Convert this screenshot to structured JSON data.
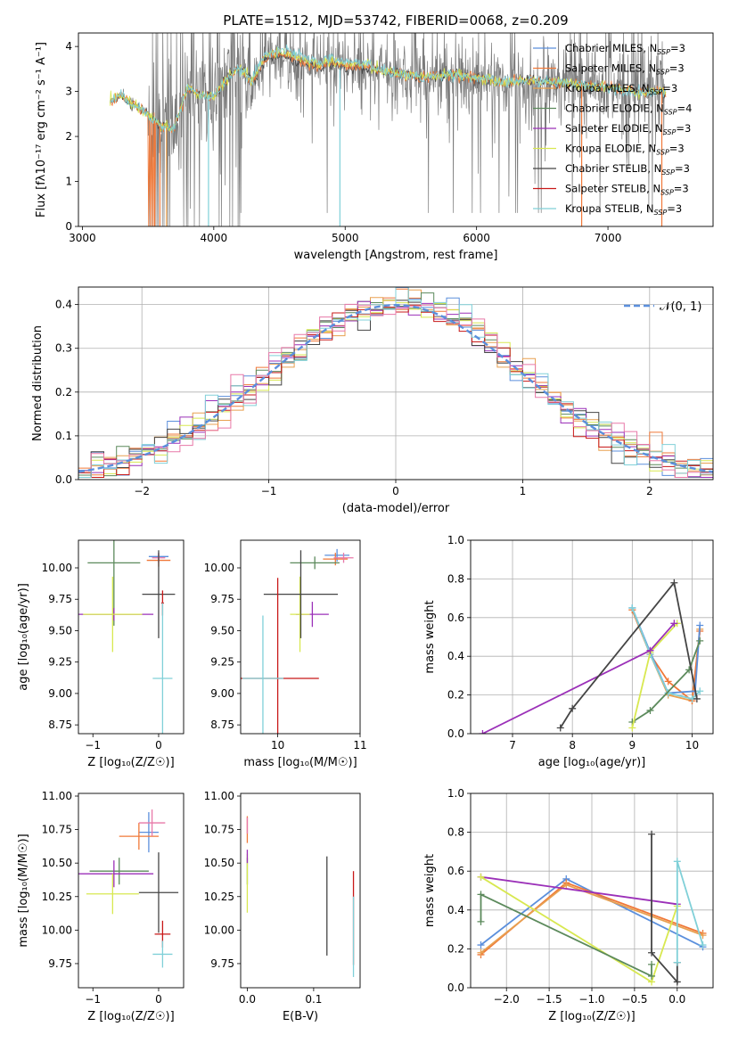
{
  "colors": {
    "c_miles": "#5b8fdc",
    "s_miles": "#f07838",
    "k_miles": "#e8a050",
    "c_elodie": "#5c8a5c",
    "s_elodie": "#9b30b8",
    "k_elodie": "#d8e850",
    "c_stelib": "#454545",
    "s_stelib": "#c81818",
    "k_stelib": "#80d0d8",
    "pink": "#e878a8",
    "gaussian": "#5b8fdc",
    "grid": "#b0b0b0"
  },
  "chart_data": [
    {
      "type": "line",
      "id": "spectrum",
      "title": "PLATE=1512, MJD=53742, FIBERID=0068, z=0.209",
      "xlabel": "wavelength [Angstrom, rest frame]",
      "ylabel": "Flux [fλ10⁻¹⁷ erg cm⁻² s⁻¹ A⁻¹]",
      "xlim": [
        2970,
        7800
      ],
      "ylim": [
        0,
        4.3
      ],
      "xticks": [
        "3000",
        "4000",
        "5000",
        "6000",
        "7000"
      ],
      "yticks": [
        "0",
        "1",
        "2",
        "3",
        "4"
      ],
      "grid": false,
      "legend_position": "right",
      "legend": [
        {
          "label": "Chabrier MILES, N",
          "sub": "SSP",
          "tail": "=3",
          "color": "#5b8fdc"
        },
        {
          "label": "Salpeter MILES, N",
          "sub": "SSP",
          "tail": "=3",
          "color": "#f07838"
        },
        {
          "label": "Kroupa MILES, N",
          "sub": "SSP",
          "tail": "=3",
          "color": "#e8a050"
        },
        {
          "label": "Chabrier ELODIE, N",
          "sub": "SSP",
          "tail": "=4",
          "color": "#5c8a5c"
        },
        {
          "label": "Salpeter ELODIE, N",
          "sub": "SSP",
          "tail": "=3",
          "color": "#9b30b8"
        },
        {
          "label": "Kroupa ELODIE, N",
          "sub": "SSP",
          "tail": "=3",
          "color": "#d8e850"
        },
        {
          "label": "Chabrier STELIB, N",
          "sub": "SSP",
          "tail": "=3",
          "color": "#454545"
        },
        {
          "label": "Salpeter STELIB, N",
          "sub": "SSP",
          "tail": "=3",
          "color": "#c81818"
        },
        {
          "label": "Kroupa STELIB, N",
          "sub": "SSP",
          "tail": "=3",
          "color": "#80d0d8"
        }
      ],
      "continuum": [
        [
          3210,
          2.8
        ],
        [
          3300,
          2.9
        ],
        [
          3400,
          2.7
        ],
        [
          3500,
          2.5
        ],
        [
          3600,
          2.2
        ],
        [
          3700,
          2.2
        ],
        [
          3800,
          3.1
        ],
        [
          3900,
          2.9
        ],
        [
          4000,
          2.9
        ],
        [
          4100,
          3.3
        ],
        [
          4200,
          3.5
        ],
        [
          4300,
          3.2
        ],
        [
          4400,
          3.7
        ],
        [
          4500,
          3.8
        ],
        [
          4600,
          3.7
        ],
        [
          4700,
          3.6
        ],
        [
          4800,
          3.5
        ],
        [
          4900,
          3.6
        ],
        [
          5000,
          3.5
        ],
        [
          5200,
          3.5
        ],
        [
          5400,
          3.4
        ],
        [
          5600,
          3.3
        ],
        [
          5800,
          3.4
        ],
        [
          6000,
          3.3
        ],
        [
          6200,
          3.2
        ],
        [
          6400,
          3.25
        ],
        [
          6600,
          3.2
        ],
        [
          6800,
          3.15
        ],
        [
          7000,
          3.1
        ],
        [
          7200,
          3.0
        ],
        [
          7450,
          3.0
        ]
      ]
    },
    {
      "type": "histogram",
      "id": "residuals",
      "xlabel": "(data-model)/error",
      "ylabel": "Normed distribution",
      "xlim": [
        -2.5,
        2.5
      ],
      "ylim": [
        0,
        0.44
      ],
      "xticks": [
        "−2",
        "−1",
        "0",
        "1",
        "2"
      ],
      "yticks": [
        "0.0",
        "0.1",
        "0.2",
        "0.3",
        "0.4"
      ],
      "grid": true,
      "legend": "𝒩(0, 1)",
      "legend_position": "top-right",
      "bin_width": 0.1
    },
    {
      "type": "errorbar",
      "id": "age_vs_Z",
      "xlabel": "Z [log₁₀(Z/Z☉)]",
      "ylabel": "age  [log₁₀(age/yr)]",
      "xlim": [
        -1.22,
        0.38
      ],
      "ylim": [
        8.68,
        10.22
      ],
      "xticks": [
        "−1",
        "0"
      ],
      "yticks": [
        "8.75",
        "9.00",
        "9.25",
        "9.50",
        "9.75",
        "10.00"
      ],
      "points": [
        {
          "color": "#5b8fdc",
          "x": 0.0,
          "xerr": 0.15,
          "y": 10.09,
          "yerr": 0.03
        },
        {
          "color": "#f07838",
          "x": 0.0,
          "xerr": 0.18,
          "y": 10.06,
          "yerr": 0.05
        },
        {
          "color": "#e878a8",
          "x": 0.0,
          "xerr": 0.1,
          "y": 10.08,
          "yerr": 0.04
        },
        {
          "color": "#5c8a5c",
          "x": -0.68,
          "xerr": 0.4,
          "y": 10.04,
          "yerr": 0.5
        },
        {
          "color": "#9b30b8",
          "x": -0.68,
          "xerr": 0.6,
          "y": 9.63,
          "yerr": 0.05
        },
        {
          "color": "#d8e850",
          "x": -0.7,
          "xerr": 0.45,
          "y": 9.63,
          "yerr": 0.3
        },
        {
          "color": "#454545",
          "x": 0.0,
          "xerr": 0.25,
          "y": 9.79,
          "yerr": 0.35
        },
        {
          "color": "#c81818",
          "x": 0.06,
          "xerr": 0.02,
          "y": 9.72,
          "yerr": 0.1
        },
        {
          "color": "#80d0d8",
          "x": 0.06,
          "xerr": 0.15,
          "y": 9.12,
          "yerr": 0.6
        }
      ]
    },
    {
      "type": "errorbar",
      "id": "age_vs_mass",
      "xlabel": "mass [log₁₀(M/M☉)]",
      "ylabel": "",
      "xlim": [
        9.55,
        11.0
      ],
      "ylim": [
        8.68,
        10.22
      ],
      "xticks": [
        "10",
        "11"
      ],
      "yticks": [
        "8.75",
        "9.00",
        "9.25",
        "9.50",
        "9.75",
        "10.00"
      ],
      "points": [
        {
          "color": "#5b8fdc",
          "x": 10.72,
          "xerr": 0.15,
          "y": 10.1,
          "yerr": 0.05
        },
        {
          "color": "#f07838",
          "x": 10.7,
          "xerr": 0.15,
          "y": 10.07,
          "yerr": 0.05
        },
        {
          "color": "#e878a8",
          "x": 10.8,
          "xerr": 0.12,
          "y": 10.08,
          "yerr": 0.04
        },
        {
          "color": "#5c8a5c",
          "x": 10.45,
          "xerr": 0.3,
          "y": 10.04,
          "yerr": 0.05
        },
        {
          "color": "#9b30b8",
          "x": 10.42,
          "xerr": 0.2,
          "y": 9.63,
          "yerr": 0.1
        },
        {
          "color": "#d8e850",
          "x": 10.27,
          "xerr": 0.12,
          "y": 9.63,
          "yerr": 0.3
        },
        {
          "color": "#454545",
          "x": 10.28,
          "xerr": 0.45,
          "y": 9.79,
          "yerr": 0.35
        },
        {
          "color": "#c81818",
          "x": 10.0,
          "xerr": 0.5,
          "y": 9.12,
          "yerr": 0.8
        },
        {
          "color": "#80d0d8",
          "x": 9.82,
          "xerr": 0.25,
          "y": 9.12,
          "yerr": 0.5
        }
      ]
    },
    {
      "type": "line",
      "id": "weight_vs_age",
      "xlabel": "age  [log₁₀(age/yr)]",
      "ylabel": "mass weight",
      "xlim": [
        6.3,
        10.35
      ],
      "ylim": [
        0,
        1.0
      ],
      "xticks": [
        "7",
        "8",
        "9",
        "10"
      ],
      "yticks": [
        "0.0",
        "0.2",
        "0.4",
        "0.6",
        "0.8",
        "1.0"
      ],
      "grid": true,
      "series": [
        {
          "color": "#e8a050",
          "x": [
            9.0,
            9.3,
            9.6,
            10.0,
            10.13
          ],
          "y": [
            0.64,
            0.41,
            0.2,
            0.17,
            0.54
          ]
        },
        {
          "color": "#f07838",
          "x": [
            9.0,
            9.3,
            9.6,
            10.0,
            10.13
          ],
          "y": [
            0.64,
            0.41,
            0.27,
            0.17,
            0.53
          ]
        },
        {
          "color": "#5b8fdc",
          "x": [
            9.0,
            9.3,
            9.6,
            10.05,
            10.13
          ],
          "y": [
            0.65,
            0.42,
            0.21,
            0.22,
            0.56
          ]
        },
        {
          "color": "#80d0d8",
          "x": [
            9.0,
            9.3,
            9.6,
            10.0,
            10.13
          ],
          "y": [
            0.65,
            0.41,
            0.21,
            0.18,
            0.22
          ]
        },
        {
          "color": "#5c8a5c",
          "x": [
            9.0,
            9.3,
            9.95,
            10.13
          ],
          "y": [
            0.06,
            0.12,
            0.33,
            0.48
          ]
        },
        {
          "color": "#d8e850",
          "x": [
            9.0,
            9.3,
            9.75
          ],
          "y": [
            0.03,
            0.42,
            0.57
          ]
        },
        {
          "color": "#9b30b8",
          "x": [
            6.5,
            9.3,
            9.7
          ],
          "y": [
            0.0,
            0.43,
            0.57
          ]
        },
        {
          "color": "#454545",
          "x": [
            7.8,
            8.0,
            9.7,
            10.08
          ],
          "y": [
            0.03,
            0.13,
            0.78,
            0.18
          ]
        }
      ]
    },
    {
      "type": "errorbar",
      "id": "mass_vs_Z",
      "xlabel": "Z [log₁₀(Z/Z☉)]",
      "ylabel": "mass [log₁₀(M/M☉)]",
      "xlim": [
        -1.22,
        0.38
      ],
      "ylim": [
        9.57,
        11.02
      ],
      "xticks": [
        "−1",
        "0"
      ],
      "yticks": [
        "9.75",
        "10.00",
        "10.25",
        "10.50",
        "10.75",
        "11.00"
      ],
      "points": [
        {
          "color": "#5b8fdc",
          "x": -0.15,
          "xerr": 0.15,
          "y": 10.73,
          "yerr": 0.15
        },
        {
          "color": "#f07838",
          "x": -0.3,
          "xerr": 0.3,
          "y": 10.7,
          "yerr": 0.1
        },
        {
          "color": "#e878a8",
          "x": -0.1,
          "xerr": 0.2,
          "y": 10.8,
          "yerr": 0.1
        },
        {
          "color": "#5c8a5c",
          "x": -0.6,
          "xerr": 0.45,
          "y": 10.44,
          "yerr": 0.1
        },
        {
          "color": "#9b30b8",
          "x": -0.68,
          "xerr": 0.6,
          "y": 10.42,
          "yerr": 0.1
        },
        {
          "color": "#d8e850",
          "x": -0.7,
          "xerr": 0.4,
          "y": 10.27,
          "yerr": 0.15
        },
        {
          "color": "#454545",
          "x": 0.0,
          "xerr": 0.3,
          "y": 10.28,
          "yerr": 0.3
        },
        {
          "color": "#c81818",
          "x": 0.06,
          "xerr": 0.12,
          "y": 9.97,
          "yerr": 0.1
        },
        {
          "color": "#80d0d8",
          "x": 0.06,
          "xerr": 0.15,
          "y": 9.82,
          "yerr": 0.1
        }
      ]
    },
    {
      "type": "errorbar",
      "id": "mass_vs_ebv",
      "xlabel": "E(B-V)",
      "ylabel": "",
      "xlim": [
        -0.01,
        0.17
      ],
      "ylim": [
        9.57,
        11.02
      ],
      "xticks": [
        "0.0",
        "0.1"
      ],
      "yticks": [
        "9.75",
        "10.00",
        "10.25",
        "10.50",
        "10.75",
        "11.00"
      ],
      "points": [
        {
          "color": "#f07838",
          "x": 0.0,
          "xerr": 0.0,
          "y": 10.75,
          "yerr": 0.1
        },
        {
          "color": "#e878a8",
          "x": 0.0,
          "xerr": 0.0,
          "y": 10.78,
          "yerr": 0.06
        },
        {
          "color": "#5c8a5c",
          "x": 0.0,
          "xerr": 0.0,
          "y": 10.44,
          "yerr": 0.1
        },
        {
          "color": "#d8e850",
          "x": 0.0,
          "xerr": 0.0,
          "y": 10.35,
          "yerr": 0.22
        },
        {
          "color": "#9b30b8",
          "x": 0.0,
          "xerr": 0.0,
          "y": 10.55,
          "yerr": 0.05
        },
        {
          "color": "#454545",
          "x": 0.12,
          "xerr": 0.0,
          "y": 10.18,
          "yerr": 0.37
        },
        {
          "color": "#c81818",
          "x": 0.16,
          "xerr": 0.0,
          "y": 10.09,
          "yerr": 0.35
        },
        {
          "color": "#80d0d8",
          "x": 0.16,
          "xerr": 0.0,
          "y": 9.95,
          "yerr": 0.3
        }
      ]
    },
    {
      "type": "line",
      "id": "weight_vs_Z",
      "xlabel": "Z [log₁₀(Z/Z☉)]",
      "ylabel": "mass weight",
      "xlim": [
        -2.42,
        0.42
      ],
      "ylim": [
        0,
        1.0
      ],
      "xticks": [
        "−2.0",
        "−1.5",
        "−1.0",
        "−0.5",
        "0.0"
      ],
      "yticks": [
        "0.0",
        "0.2",
        "0.4",
        "0.6",
        "0.8",
        "1.0"
      ],
      "grid": true,
      "series": [
        {
          "color": "#5b8fdc",
          "x": [
            -2.3,
            -1.3,
            0.3
          ],
          "y": [
            0.22,
            0.56,
            0.21
          ]
        },
        {
          "color": "#f07838",
          "x": [
            -2.3,
            -1.3,
            0.3
          ],
          "y": [
            0.17,
            0.54,
            0.28
          ]
        },
        {
          "color": "#e8a050",
          "x": [
            -2.3,
            -1.3,
            0.3
          ],
          "y": [
            0.18,
            0.53,
            0.27
          ]
        },
        {
          "color": "#9b30b8",
          "x": [
            -2.3,
            0.0
          ],
          "y": [
            0.57,
            0.43
          ]
        },
        {
          "color": "#d8e850",
          "x": [
            -2.3,
            -0.3,
            0.0
          ],
          "y": [
            0.57,
            0.03,
            0.42
          ]
        },
        {
          "color": "#5c8a5c",
          "x": [
            -2.3,
            -2.3,
            -0.3,
            -0.3
          ],
          "y": [
            0.34,
            0.48,
            0.06,
            0.12
          ]
        },
        {
          "color": "#454545",
          "x": [
            -0.3,
            -0.3,
            0.0,
            0.0
          ],
          "y": [
            0.79,
            0.18,
            0.03,
            0.13
          ]
        },
        {
          "color": "#80d0d8",
          "x": [
            0.0,
            0.0,
            0.3
          ],
          "y": [
            0.13,
            0.65,
            0.22
          ]
        }
      ]
    }
  ]
}
